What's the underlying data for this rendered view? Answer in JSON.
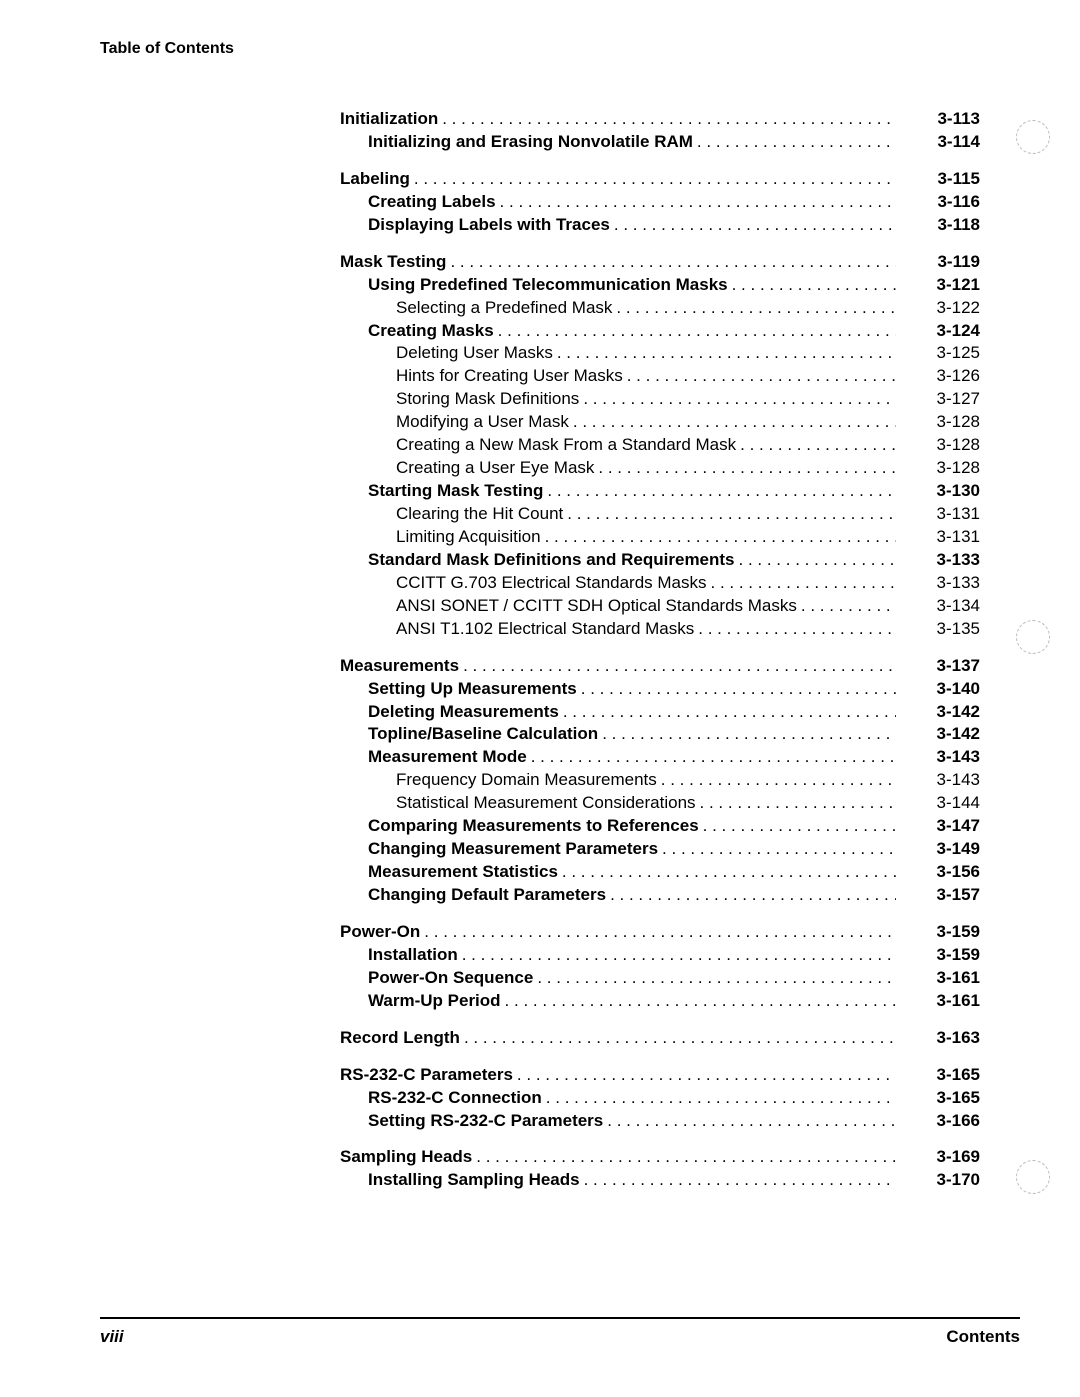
{
  "header": {
    "title": "Table of Contents"
  },
  "footer": {
    "left": "viii",
    "right": "Contents"
  },
  "punch_holes": [
    120,
    620,
    1160
  ],
  "toc": [
    {
      "level": 0,
      "title": "Initialization",
      "page": "3-113"
    },
    {
      "level": 1,
      "title": "Initializing and Erasing Nonvolatile RAM",
      "page": "3-114"
    },
    {
      "level": 0,
      "title": "Labeling",
      "page": "3-115"
    },
    {
      "level": 1,
      "title": "Creating Labels",
      "page": "3-116"
    },
    {
      "level": 1,
      "title": "Displaying Labels with Traces",
      "page": "3-118"
    },
    {
      "level": 0,
      "title": "Mask Testing",
      "page": "3-119"
    },
    {
      "level": 1,
      "title": "Using Predefined Telecommunication Masks",
      "page": "3-121"
    },
    {
      "level": 2,
      "title": "Selecting a Predefined Mask",
      "page": "3-122"
    },
    {
      "level": 1,
      "title": "Creating Masks",
      "page": "3-124"
    },
    {
      "level": 2,
      "title": "Deleting User Masks",
      "page": "3-125"
    },
    {
      "level": 2,
      "title": "Hints for Creating User Masks",
      "page": "3-126"
    },
    {
      "level": 2,
      "title": "Storing Mask Definitions",
      "page": "3-127"
    },
    {
      "level": 2,
      "title": "Modifying a User Mask",
      "page": "3-128"
    },
    {
      "level": 2,
      "title": "Creating a New Mask From a Standard Mask",
      "page": "3-128"
    },
    {
      "level": 2,
      "title": "Creating a User Eye Mask",
      "page": "3-128"
    },
    {
      "level": 1,
      "title": "Starting Mask Testing",
      "page": "3-130"
    },
    {
      "level": 2,
      "title": "Clearing the Hit Count",
      "page": "3-131"
    },
    {
      "level": 2,
      "title": "Limiting Acquisition",
      "page": "3-131"
    },
    {
      "level": 1,
      "title": "Standard Mask Definitions and Requirements",
      "page": "3-133"
    },
    {
      "level": 2,
      "title": "CCITT G.703 Electrical Standards Masks",
      "page": "3-133"
    },
    {
      "level": 2,
      "title": "ANSI SONET / CCITT SDH Optical Standards Masks",
      "page": "3-134"
    },
    {
      "level": 2,
      "title": "ANSI T1.102 Electrical Standard Masks",
      "page": "3-135"
    },
    {
      "level": 0,
      "title": "Measurements",
      "page": "3-137"
    },
    {
      "level": 1,
      "title": "Setting Up Measurements",
      "page": "3-140"
    },
    {
      "level": 1,
      "title": "Deleting Measurements",
      "page": "3-142"
    },
    {
      "level": 1,
      "title": "Topline/Baseline Calculation",
      "page": "3-142"
    },
    {
      "level": 1,
      "title": "Measurement Mode",
      "page": "3-143"
    },
    {
      "level": 2,
      "title": "Frequency Domain Measurements",
      "page": "3-143"
    },
    {
      "level": 2,
      "title": "Statistical Measurement Considerations",
      "page": "3-144"
    },
    {
      "level": 1,
      "title": "Comparing Measurements to References",
      "page": "3-147"
    },
    {
      "level": 1,
      "title": "Changing Measurement Parameters",
      "page": "3-149"
    },
    {
      "level": 1,
      "title": "Measurement Statistics",
      "page": "3-156"
    },
    {
      "level": 1,
      "title": "Changing Default Parameters",
      "page": "3-157"
    },
    {
      "level": 0,
      "title": "Power-On",
      "page": "3-159"
    },
    {
      "level": 1,
      "title": "Installation",
      "page": "3-159"
    },
    {
      "level": 1,
      "title": "Power-On Sequence",
      "page": "3-161"
    },
    {
      "level": 1,
      "title": "Warm-Up Period",
      "page": "3-161"
    },
    {
      "level": 0,
      "title": "Record Length",
      "page": "3-163"
    },
    {
      "level": 0,
      "title": "RS-232-C Parameters",
      "page": "3-165"
    },
    {
      "level": 1,
      "title": "RS-232-C Connection",
      "page": "3-165"
    },
    {
      "level": 1,
      "title": "Setting RS-232-C Parameters",
      "page": "3-166"
    },
    {
      "level": 0,
      "title": "Sampling Heads",
      "page": "3-169"
    },
    {
      "level": 1,
      "title": "Installing Sampling Heads",
      "page": "3-170"
    }
  ]
}
